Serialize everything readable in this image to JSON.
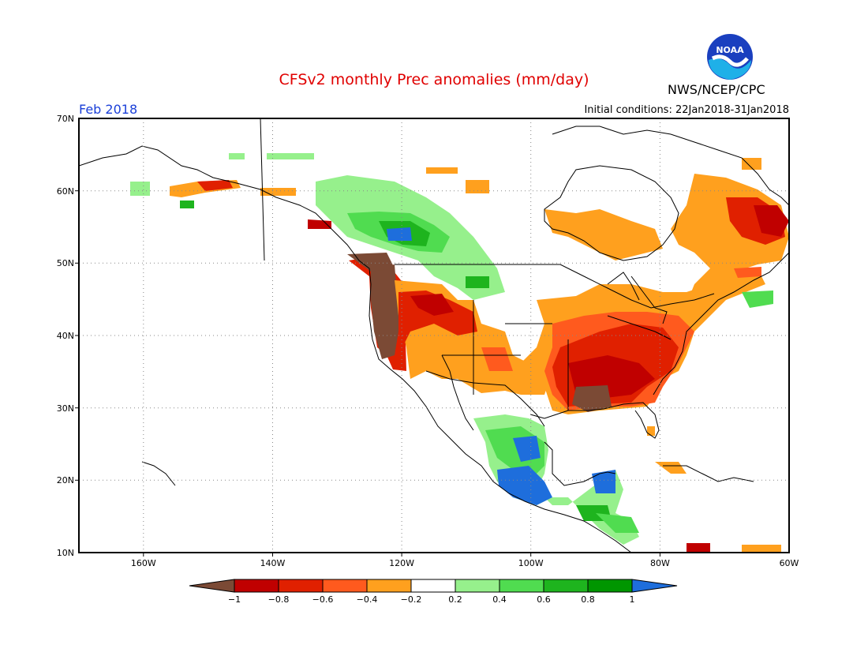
{
  "header": {
    "title": "CFSv2 monthly Prec anomalies (mm/day)",
    "month": "Feb 2018",
    "initial_conditions": "Initial conditions: 22Jan2018-31Jan2018",
    "organization": "NWS/NCEP/CPC",
    "logo_text": "NOAA"
  },
  "axes": {
    "lat_labels": [
      "70N",
      "60N",
      "50N",
      "40N",
      "30N",
      "20N",
      "10N"
    ],
    "lon_labels": [
      "160W",
      "140W",
      "120W",
      "100W",
      "80W",
      "60W"
    ]
  },
  "colorbar": {
    "labels": [
      "−1",
      "−0.8",
      "−0.6",
      "−0.4",
      "−0.2",
      "0.2",
      "0.4",
      "0.6",
      "0.8",
      "1"
    ],
    "colors": [
      "#7b4a35",
      "#c00000",
      "#e02000",
      "#ff5a1e",
      "#ffa01e",
      "#ffffff",
      "#96f08c",
      "#50dc50",
      "#1eb41e",
      "#009600",
      "#1e6edc"
    ]
  },
  "legend_colors": {
    "brown": "#7b4a35",
    "dark_red": "#c00000",
    "red": "#e02000",
    "orange_red": "#ff5a1e",
    "orange": "#ffa01e",
    "light_green": "#96f08c",
    "green": "#50dc50",
    "mid_green": "#1eb41e",
    "dark_green": "#009600",
    "blue": "#1e6edc"
  }
}
